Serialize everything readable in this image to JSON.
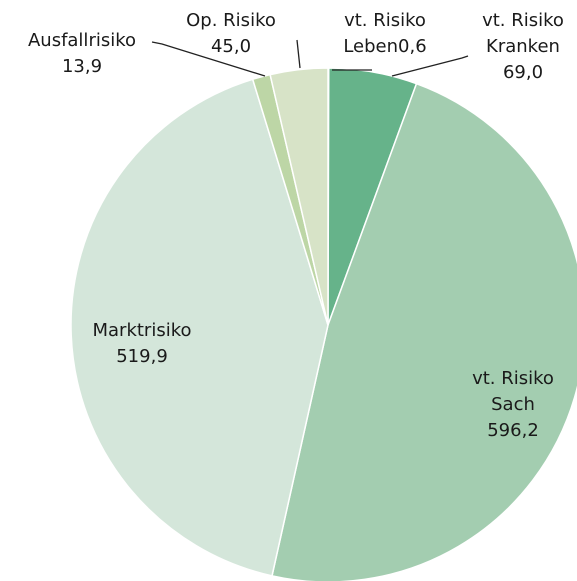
{
  "chart_data": {
    "type": "pie",
    "categories": [
      "vt. Risiko Leben",
      "vt. Risiko Kranken",
      "vt. Risiko Sach",
      "Marktrisiko",
      "Ausfallrisiko",
      "Op. Risiko"
    ],
    "values": [
      0.6,
      69.0,
      596.2,
      519.9,
      13.9,
      45.0
    ],
    "value_labels": [
      "0,6",
      "69,0",
      "596,2",
      "519,9",
      "13,9",
      "45,0"
    ],
    "colors": [
      "#3f9a6c",
      "#66b38a",
      "#a3cdb0",
      "#d4e6da",
      "#bdd6a6",
      "#d7e3c7"
    ]
  }
}
